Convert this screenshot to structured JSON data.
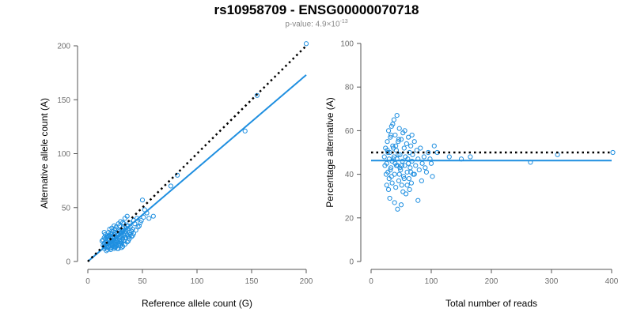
{
  "title": "rs10958709 - ENSG00000070718",
  "subtitle": {
    "prefix": "p-value: 4.9×10",
    "exponent": "-13"
  },
  "colors": {
    "points": "#1f8fe0",
    "fit_line": "#1f8fe0",
    "reference_line": "#000000"
  },
  "chart_data": [
    {
      "type": "scatter",
      "xlabel": "Reference allele count (G)",
      "ylabel": "Alternative allele count (A)",
      "xlim": [
        0,
        200
      ],
      "ylim": [
        0,
        200
      ],
      "xticks": [
        "0",
        "50",
        "100",
        "150",
        "200"
      ],
      "yticks": [
        "0",
        "50",
        "100",
        "150",
        "200"
      ],
      "fit_line": {
        "x": [
          0,
          200
        ],
        "y": [
          0,
          173
        ]
      },
      "reference_line": {
        "x": [
          0,
          200
        ],
        "y": [
          0,
          200
        ]
      },
      "points": [
        [
          14,
          15
        ],
        [
          15,
          12
        ],
        [
          16,
          18
        ],
        [
          17,
          14
        ],
        [
          13,
          19
        ],
        [
          18,
          16
        ],
        [
          19,
          20
        ],
        [
          20,
          17
        ],
        [
          21,
          22
        ],
        [
          22,
          19
        ],
        [
          23,
          15
        ],
        [
          24,
          21
        ],
        [
          25,
          18
        ],
        [
          26,
          23
        ],
        [
          27,
          20
        ],
        [
          28,
          25
        ],
        [
          29,
          22
        ],
        [
          30,
          18
        ],
        [
          31,
          24
        ],
        [
          32,
          21
        ],
        [
          15,
          22
        ],
        [
          16,
          25
        ],
        [
          17,
          10
        ],
        [
          18,
          13
        ],
        [
          19,
          27
        ],
        [
          20,
          24
        ],
        [
          21,
          11
        ],
        [
          22,
          26
        ],
        [
          23,
          28
        ],
        [
          24,
          14
        ],
        [
          25,
          30
        ],
        [
          26,
          16
        ],
        [
          27,
          12
        ],
        [
          28,
          29
        ],
        [
          29,
          33
        ],
        [
          30,
          27
        ],
        [
          31,
          13
        ],
        [
          32,
          31
        ],
        [
          33,
          35
        ],
        [
          34,
          26
        ],
        [
          35,
          22
        ],
        [
          36,
          30
        ],
        [
          37,
          19
        ],
        [
          38,
          36
        ],
        [
          39,
          32
        ],
        [
          40,
          28
        ],
        [
          41,
          24
        ],
        [
          42,
          38
        ],
        [
          14,
          20
        ],
        [
          16,
          21
        ],
        [
          18,
          23
        ],
        [
          20,
          20
        ],
        [
          22,
          16
        ],
        [
          24,
          25
        ],
        [
          26,
          19
        ],
        [
          28,
          15
        ],
        [
          30,
          23
        ],
        [
          32,
          28
        ],
        [
          34,
          22
        ],
        [
          36,
          25
        ],
        [
          38,
          27
        ],
        [
          15,
          17
        ],
        [
          17,
          19
        ],
        [
          19,
          14
        ],
        [
          21,
          18
        ],
        [
          23,
          23
        ],
        [
          25,
          13
        ],
        [
          27,
          26
        ],
        [
          29,
          17
        ],
        [
          31,
          19
        ],
        [
          33,
          24
        ],
        [
          35,
          28
        ],
        [
          37,
          23
        ],
        [
          39,
          25
        ],
        [
          41,
          30
        ],
        [
          43,
          35
        ],
        [
          45,
          40
        ],
        [
          47,
          33
        ],
        [
          49,
          38
        ],
        [
          51,
          41
        ],
        [
          15,
          27
        ],
        [
          17,
          23
        ],
        [
          19,
          24
        ],
        [
          21,
          26
        ],
        [
          23,
          20
        ],
        [
          25,
          27
        ],
        [
          27,
          24
        ],
        [
          29,
          28
        ],
        [
          31,
          26
        ],
        [
          33,
          29
        ],
        [
          35,
          31
        ],
        [
          37,
          33
        ],
        [
          20,
          30
        ],
        [
          22,
          31
        ],
        [
          24,
          33
        ],
        [
          26,
          32
        ],
        [
          28,
          35
        ],
        [
          30,
          37
        ],
        [
          32,
          36
        ],
        [
          34,
          40
        ],
        [
          36,
          42
        ],
        [
          15,
          14
        ],
        [
          17,
          16
        ],
        [
          19,
          17
        ],
        [
          21,
          15
        ],
        [
          23,
          17
        ],
        [
          25,
          16
        ],
        [
          27,
          18
        ],
        [
          29,
          20
        ],
        [
          31,
          17
        ],
        [
          33,
          19
        ],
        [
          18,
          11
        ],
        [
          20,
          12
        ],
        [
          22,
          13
        ],
        [
          24,
          12
        ],
        [
          26,
          14
        ],
        [
          28,
          12
        ],
        [
          30,
          15
        ],
        [
          32,
          14
        ],
        [
          34,
          16
        ],
        [
          36,
          18
        ],
        [
          38,
          21
        ],
        [
          40,
          23
        ],
        [
          42,
          26
        ],
        [
          44,
          29
        ],
        [
          46,
          32
        ],
        [
          48,
          36
        ],
        [
          50,
          57
        ],
        [
          52,
          48
        ],
        [
          54,
          45
        ],
        [
          56,
          40
        ],
        [
          60,
          42
        ],
        [
          82,
          80
        ],
        [
          76,
          70
        ],
        [
          144,
          121
        ],
        [
          155,
          154
        ],
        [
          200,
          202
        ]
      ]
    },
    {
      "type": "scatter",
      "xlabel": "Total number of reads",
      "ylabel": "Percentage alternative (A)",
      "xlim": [
        0,
        400
      ],
      "ylim": [
        0,
        100
      ],
      "xticks": [
        "0",
        "100",
        "200",
        "300",
        "400"
      ],
      "yticks": [
        "0",
        "20",
        "40",
        "60",
        "80",
        "100"
      ],
      "fit_line": {
        "x": [
          0,
          400
        ],
        "y": [
          46.3,
          46.3
        ]
      },
      "reference_line": {
        "x": [
          0,
          400
        ],
        "y": [
          50,
          50
        ]
      },
      "points": [
        [
          22,
          48
        ],
        [
          24,
          52
        ],
        [
          26,
          45
        ],
        [
          27,
          55
        ],
        [
          28,
          41
        ],
        [
          29,
          60
        ],
        [
          30,
          38
        ],
        [
          31,
          50
        ],
        [
          32,
          57
        ],
        [
          33,
          43
        ],
        [
          34,
          62
        ],
        [
          35,
          36
        ],
        [
          36,
          53
        ],
        [
          37,
          47
        ],
        [
          38,
          65
        ],
        [
          39,
          40
        ],
        [
          40,
          58
        ],
        [
          41,
          34
        ],
        [
          42,
          51
        ],
        [
          43,
          67
        ],
        [
          44,
          44
        ],
        [
          45,
          55
        ],
        [
          46,
          37
        ],
        [
          47,
          61
        ],
        [
          48,
          49
        ],
        [
          49,
          42
        ],
        [
          50,
          56
        ],
        [
          51,
          35
        ],
        [
          52,
          46
        ],
        [
          53,
          59
        ],
        [
          54,
          39
        ],
        [
          55,
          52
        ],
        [
          56,
          44
        ],
        [
          57,
          48
        ],
        [
          58,
          31
        ],
        [
          59,
          54
        ],
        [
          60,
          41
        ],
        [
          61,
          47
        ],
        [
          62,
          57
        ],
        [
          63,
          38
        ],
        [
          64,
          50
        ],
        [
          65,
          43
        ],
        [
          66,
          53
        ],
        [
          67,
          36
        ],
        [
          68,
          46
        ],
        [
          69,
          49
        ],
        [
          70,
          40
        ],
        [
          72,
          55
        ],
        [
          74,
          44
        ],
        [
          76,
          51
        ],
        [
          78,
          47
        ],
        [
          80,
          42
        ],
        [
          82,
          52
        ],
        [
          85,
          45
        ],
        [
          88,
          48
        ],
        [
          90,
          43
        ],
        [
          95,
          50
        ],
        [
          98,
          47
        ],
        [
          100,
          45
        ],
        [
          105,
          53
        ],
        [
          110,
          50
        ],
        [
          130,
          48
        ],
        [
          150,
          47
        ],
        [
          165,
          48
        ],
        [
          265,
          45.5
        ],
        [
          310,
          49
        ],
        [
          402,
          50
        ],
        [
          25,
          40
        ],
        [
          28,
          50
        ],
        [
          30,
          47
        ],
        [
          32,
          42
        ],
        [
          35,
          46
        ],
        [
          38,
          48
        ],
        [
          40,
          45
        ],
        [
          42,
          44
        ],
        [
          45,
          49
        ],
        [
          48,
          43
        ],
        [
          26,
          35
        ],
        [
          29,
          33
        ],
        [
          31,
          29
        ],
        [
          33,
          58
        ],
        [
          36,
          63
        ],
        [
          39,
          27
        ],
        [
          41,
          53
        ],
        [
          44,
          24
        ],
        [
          46,
          56
        ],
        [
          50,
          26
        ],
        [
          53,
          32
        ],
        [
          56,
          60
        ],
        [
          60,
          35
        ],
        [
          64,
          33
        ],
        [
          68,
          58
        ],
        [
          72,
          40
        ],
        [
          78,
          28
        ],
        [
          84,
          37
        ],
        [
          92,
          41
        ],
        [
          102,
          39
        ],
        [
          23,
          44
        ],
        [
          27,
          51
        ],
        [
          34,
          39
        ],
        [
          37,
          52
        ],
        [
          43,
          47
        ],
        [
          47,
          40
        ],
        [
          51,
          44
        ],
        [
          55,
          38
        ],
        [
          62,
          45
        ],
        [
          66,
          41
        ]
      ]
    }
  ]
}
